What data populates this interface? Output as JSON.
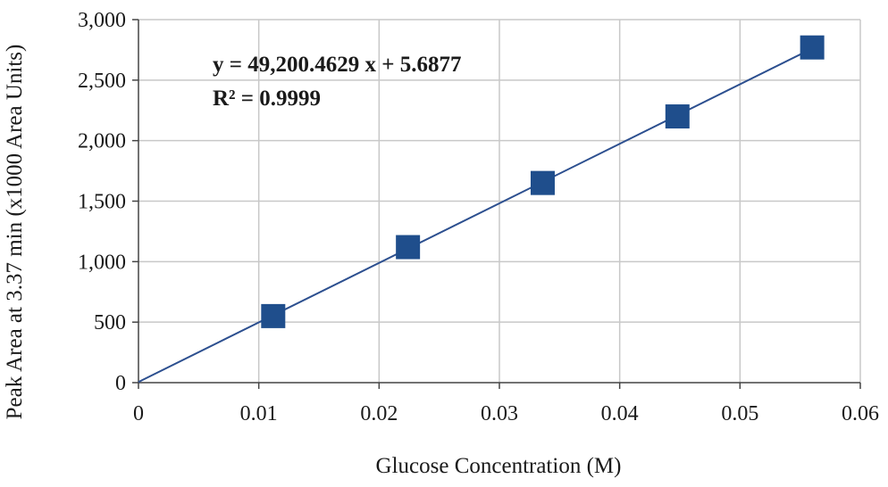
{
  "chart_data": {
    "type": "scatter",
    "title": "",
    "xlabel": "Glucose Concentration (M)",
    "ylabel": "Peak Area at 3.37 min (x1000 Area Units)",
    "xlim": [
      0,
      0.06
    ],
    "ylim": [
      0,
      3000
    ],
    "x_ticks": [
      0,
      0.01,
      0.02,
      0.03,
      0.04,
      0.05,
      0.06
    ],
    "x_tick_labels": [
      "0",
      "0.01",
      "0.02",
      "0.03",
      "0.04",
      "0.05",
      "0.06"
    ],
    "y_ticks": [
      0,
      500,
      1000,
      1500,
      2000,
      2500,
      3000
    ],
    "y_tick_labels": [
      "0",
      "500",
      "1,000",
      "1,500",
      "2,000",
      "2,500",
      "3,000"
    ],
    "grid": true,
    "series": [
      {
        "name": "Peak Area",
        "marker": "square",
        "color": "#1f4e8c",
        "x": [
          0.0112,
          0.0224,
          0.0336,
          0.0448,
          0.056
        ],
        "y": [
          550,
          1120,
          1650,
          2200,
          2770
        ]
      }
    ],
    "trendline": {
      "slope": 49200.4629,
      "intercept": 5.6877,
      "x_range": [
        0,
        0.056
      ],
      "color": "#2c4f8f"
    },
    "annotations": {
      "equation": "y = 49,200.4629 x + 5.6877",
      "r_squared": "R² = 0.9999"
    }
  }
}
